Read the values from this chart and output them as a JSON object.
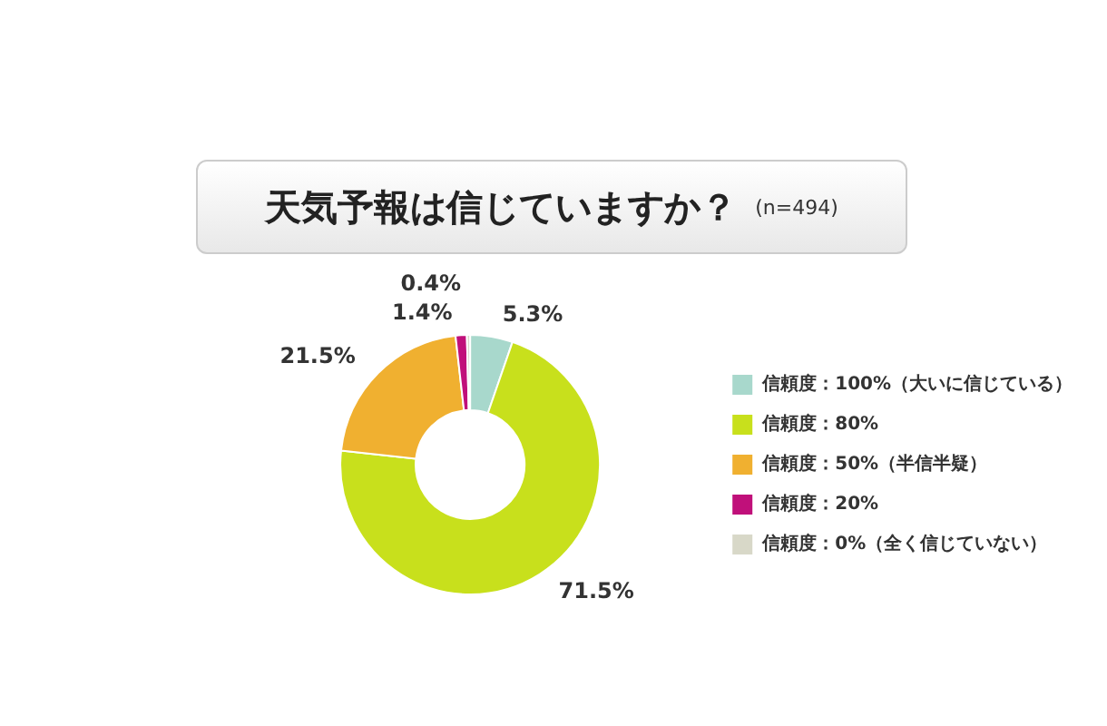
{
  "chart_data": {
    "type": "donut",
    "title": "天気予報は信じていますか？",
    "subtitle": "(n=494)",
    "categories": [
      "信頼度：100%（大いに信じている）",
      "信頼度：80%",
      "信頼度：50%（半信半疑）",
      "信頼度：20%",
      "信頼度：0%（全く信じていない）"
    ],
    "values": [
      5.3,
      71.5,
      21.5,
      1.4,
      0.4
    ],
    "colors": [
      "#a8d8cc",
      "#c8e01c",
      "#f0b030",
      "#c0107a",
      "#d8d8c8"
    ],
    "value_labels": [
      "5.3%",
      "71.5%",
      "21.5%",
      "1.4%",
      "0.4%"
    ],
    "legend": "right"
  }
}
